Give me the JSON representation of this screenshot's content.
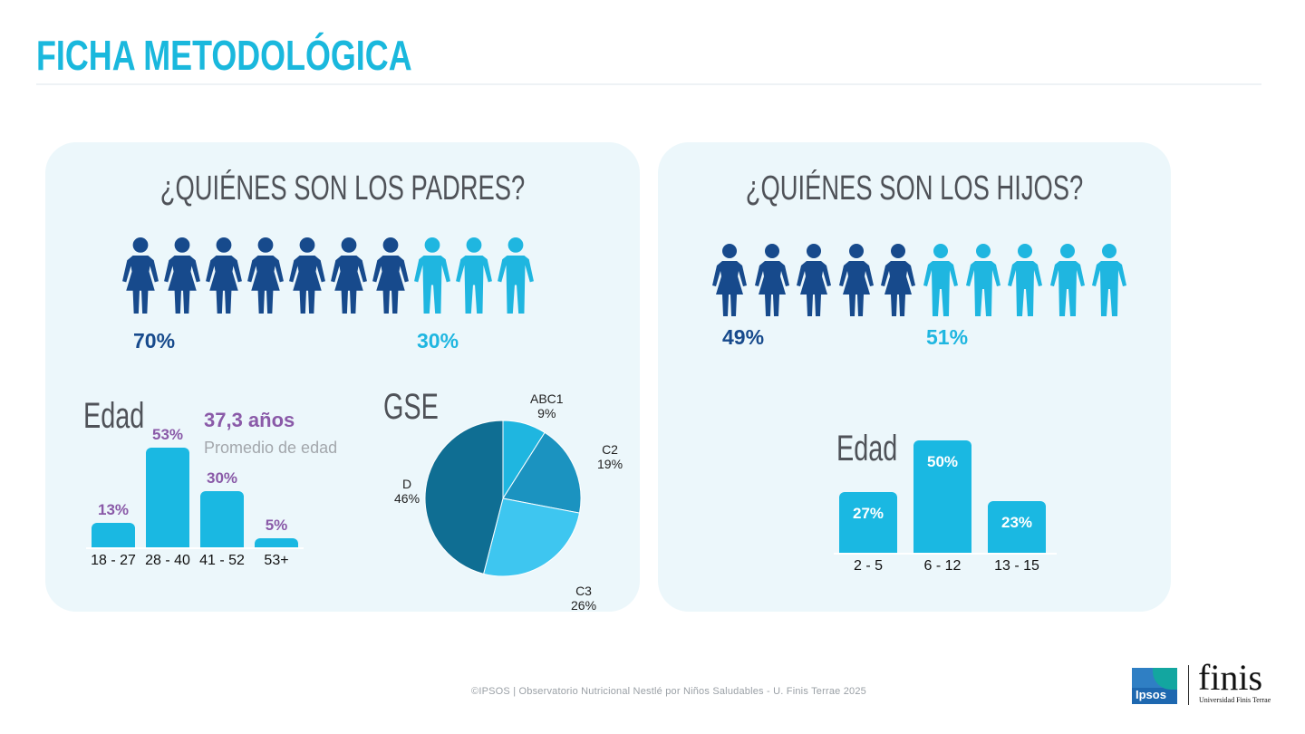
{
  "page": {
    "title": "FICHA METODOLÓGICA"
  },
  "padres": {
    "heading": "¿QUIÉNES SON LOS PADRES?",
    "female_pct": "70%",
    "male_pct": "30%",
    "age_heading": "Edad",
    "avg_age": "37,3 años",
    "avg_caption": "Promedio de edad",
    "gse_heading": "GSE"
  },
  "hijos": {
    "heading": "¿QUIÉNES SON LOS HIJOS?",
    "female_pct": "49%",
    "male_pct": "51%",
    "age_heading": "Edad"
  },
  "colors": {
    "dark_blue": "#174a8c",
    "light_blue": "#1fb6e0",
    "bar_blue": "#1ab8e2",
    "purple": "#8a5aa8",
    "panel_bg": "#ecf7fb"
  },
  "chart_data": [
    {
      "type": "pictograph",
      "title": "¿QUIÉNES SON LOS PADRES?",
      "icons_female": 7,
      "icons_male": 3,
      "values": [
        70,
        30
      ],
      "labels": [
        "70%",
        "30%"
      ]
    },
    {
      "type": "bar",
      "title": "Edad",
      "categories": [
        "18 - 27",
        "28 - 40",
        "41 - 52",
        "53+"
      ],
      "values": [
        13,
        53,
        30,
        5
      ],
      "value_labels": [
        "13%",
        "53%",
        "30%",
        "5%"
      ],
      "annotation": "37,3 años",
      "annotation_caption": "Promedio de edad"
    },
    {
      "type": "pie",
      "title": "GSE",
      "categories": [
        "ABC1",
        "C2",
        "C3",
        "D"
      ],
      "values": [
        9,
        19,
        26,
        46
      ],
      "value_labels": [
        "9%",
        "19%",
        "26%",
        "46%"
      ],
      "colors": [
        "#1fb6e0",
        "#1b93c0",
        "#3ec6f0",
        "#0f6e93"
      ]
    },
    {
      "type": "pictograph",
      "title": "¿QUIÉNES SON LOS HIJOS?",
      "icons_female": 5,
      "icons_male": 5,
      "values": [
        49,
        51
      ],
      "labels": [
        "49%",
        "51%"
      ]
    },
    {
      "type": "bar",
      "title": "Edad",
      "categories": [
        "2 - 5",
        "6 - 12",
        "13 - 15"
      ],
      "values": [
        27,
        50,
        23
      ],
      "value_labels": [
        "27%",
        "50%",
        "23%"
      ]
    }
  ],
  "footer": {
    "text": "©IPSOS | Observatorio Nutricional Nestlé por Niños Saludables - U. Finis Terrae 2025",
    "ipsos_logo": "Ipsos",
    "finis_logo": "finis",
    "finis_sub": "Universidad Finis Terrae"
  }
}
